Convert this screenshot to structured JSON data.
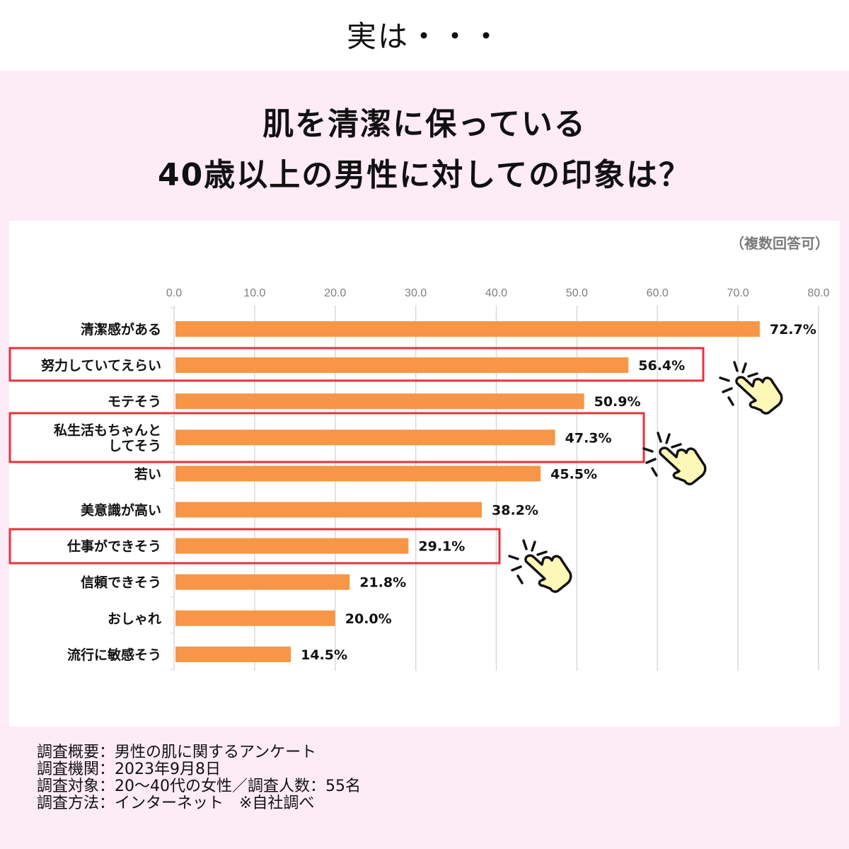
{
  "header": {
    "title": "実は・・・"
  },
  "main_title": {
    "line1": "肌を清潔に保っている",
    "line2": "40歳以上の男性に対しての印象は？"
  },
  "note": "（複数回答可）",
  "colors": {
    "bar": "#f79646",
    "highlight_box": "#e8323c",
    "pink_bg": "#fdebf6",
    "hand_fill": "#fdf7b8"
  },
  "chart_data": {
    "type": "bar",
    "orientation": "horizontal",
    "title": "肌を清潔に保っている40歳以上の男性に対しての印象は？",
    "xlabel": "",
    "ylabel": "",
    "xlim": [
      0,
      80
    ],
    "grid": true,
    "ticks": [
      "0.0",
      "10.0",
      "20.0",
      "30.0",
      "40.0",
      "50.0",
      "60.0",
      "70.0",
      "80.0"
    ],
    "tick_values": [
      0,
      10,
      20,
      30,
      40,
      50,
      60,
      70,
      80
    ],
    "categories": [
      [
        "清潔感がある"
      ],
      [
        "努力していてえらい"
      ],
      [
        "モテそう"
      ],
      [
        "私生活もちゃんと",
        "してそう"
      ],
      [
        "若い"
      ],
      [
        "美意識が高い"
      ],
      [
        "仕事ができそう"
      ],
      [
        "信頼できそう"
      ],
      [
        "おしゃれ"
      ],
      [
        "流行に敏感そう"
      ]
    ],
    "values": [
      72.7,
      56.4,
      50.9,
      47.3,
      45.5,
      38.2,
      29.1,
      21.8,
      20.0,
      14.5
    ],
    "data_labels": [
      "72.7%",
      "56.4%",
      "50.9%",
      "47.3%",
      "45.5%",
      "38.2%",
      "29.1%",
      "21.8%",
      "20.0%",
      "14.5%"
    ],
    "highlighted_indices": [
      1,
      3,
      6
    ],
    "unit": "%"
  },
  "footer": {
    "lines": [
      "調査概要：男性の肌に関するアンケート",
      "調査機関：2023年9月8日",
      "調査対象：20～40代の女性／調査人数：55名",
      "調査方法：インターネット　※自社調べ"
    ]
  }
}
